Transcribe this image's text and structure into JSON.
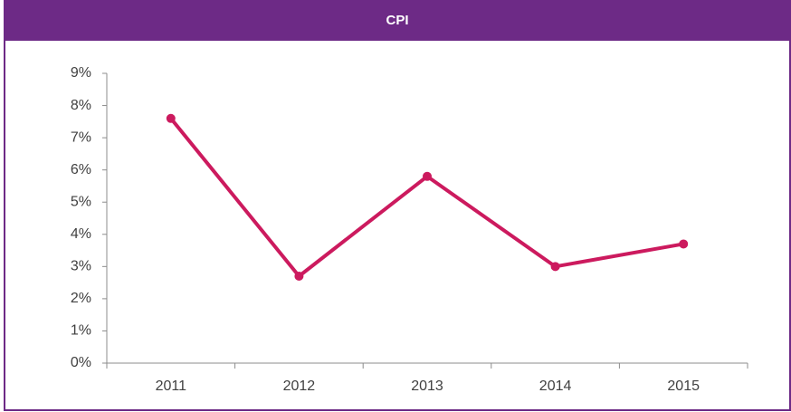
{
  "chart_data": {
    "type": "line",
    "title": "CPI",
    "categories": [
      "2011",
      "2012",
      "2013",
      "2014",
      "2015"
    ],
    "series": [
      {
        "name": "CPI",
        "color": "#cc1a5e",
        "values": [
          7.6,
          2.7,
          5.8,
          3.0,
          3.7
        ]
      }
    ],
    "ylim": [
      0,
      9
    ],
    "yticks": [
      {
        "value": 0,
        "label": "0%"
      },
      {
        "value": 1,
        "label": "1%"
      },
      {
        "value": 2,
        "label": "2%"
      },
      {
        "value": 3,
        "label": "3%"
      },
      {
        "value": 4,
        "label": "4%"
      },
      {
        "value": 5,
        "label": "5%"
      },
      {
        "value": 6,
        "label": "6%"
      },
      {
        "value": 7,
        "label": "7%"
      },
      {
        "value": 8,
        "label": "8%"
      },
      {
        "value": 9,
        "label": "9%"
      }
    ],
    "grid": false
  }
}
